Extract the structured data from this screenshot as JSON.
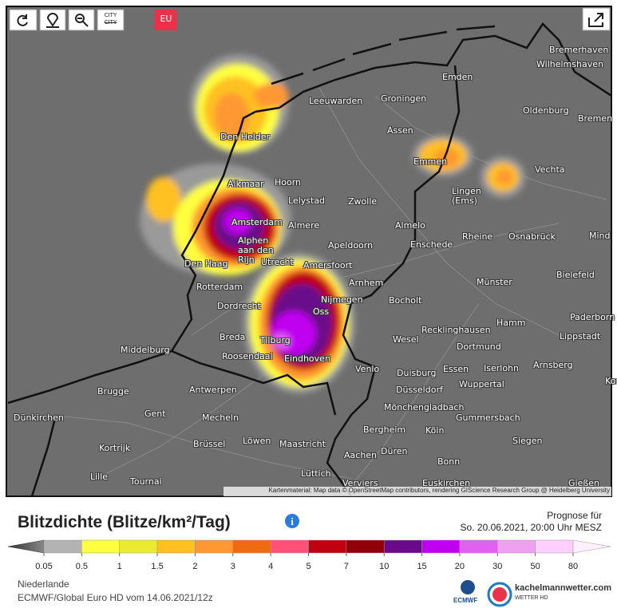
{
  "toolbar": {
    "city_top": "CITY",
    "city_bottom": "CITY",
    "region": "EU"
  },
  "map": {
    "cities": [
      "Bremerhaven",
      "Wilhelmshaven",
      "Emden",
      "Leeuwarden",
      "Groningen",
      "Oldenburg",
      "Bremen",
      "Den Helder",
      "Assen",
      "Emmen",
      "Vechta",
      "Alkmaar",
      "Hoorn",
      "Lelystad",
      "Zwolle",
      "Lingen (Ems)",
      "Amsterdam",
      "Almere",
      "Almelo",
      "Alphen aan den Rijn",
      "Apeldoorn",
      "Enschede",
      "Rheine",
      "Osnabrück",
      "Mind",
      "Den Haag",
      "Utrecht",
      "Amersfoort",
      "Rotterdam",
      "Arnhem",
      "Bielefeld",
      "Münster",
      "Dordrecht",
      "Nijmegen",
      "Oss",
      "Bocholt",
      "Paderborn",
      "Hamm",
      "Breda",
      "Tilburg",
      "Recklinghausen",
      "Lippstadt",
      "Middelburg",
      "Roosendaal",
      "Wesel",
      "Dortmund",
      "Eindhoven",
      "Iserlohn",
      "Arnsberg",
      "Venlo",
      "Duisburg",
      "Essen",
      "Wuppertal",
      "Korbac",
      "Brugge",
      "Antwerpen",
      "Düsseldorf",
      "Mönchengladbach",
      "Gent",
      "Dünkirchen",
      "Mecheln",
      "Gummersbach",
      "Bergheim",
      "Köln",
      "Löwen",
      "Brüssel",
      "Maastricht",
      "Siegen",
      "Kortrijk",
      "Aachen",
      "Düren",
      "Bonn",
      "Lille",
      "Tournai",
      "Lüttich",
      "Verviers",
      "Euskirchen",
      "Gießen"
    ],
    "attribution": "Kartenmaterial: Map data © OpenStreetMap contributors, rendering GIScience Research Group @ Heidelberg University"
  },
  "legend": {
    "title": "Blitzdichte (Blitze/km²/Tag)",
    "forecast_label": "Prognose für",
    "forecast_time": "So. 20.06.2021, 20:00 Uhr MESZ",
    "levels": [
      0.05,
      0.5,
      1,
      1.5,
      2,
      3,
      4,
      5,
      7,
      10,
      15,
      20,
      30,
      50,
      80
    ],
    "colors": [
      "#b3b3b3",
      "#ffff40",
      "#eaea30",
      "#ffc020",
      "#ff9830",
      "#f06a10",
      "#ff5078",
      "#c00010",
      "#900008",
      "#6a0a8a",
      "#c000f0",
      "#e060f0",
      "#f0a0f0",
      "#ffd0ff"
    ]
  },
  "footer": {
    "region": "Niederlande",
    "model": "ECMWF/Global Euro HD vom 14.06.2021/12z",
    "ecmwf_logo": "ECMWF",
    "brand": "kachelmannwetter.com",
    "brand_sub": "WETTER HD"
  }
}
